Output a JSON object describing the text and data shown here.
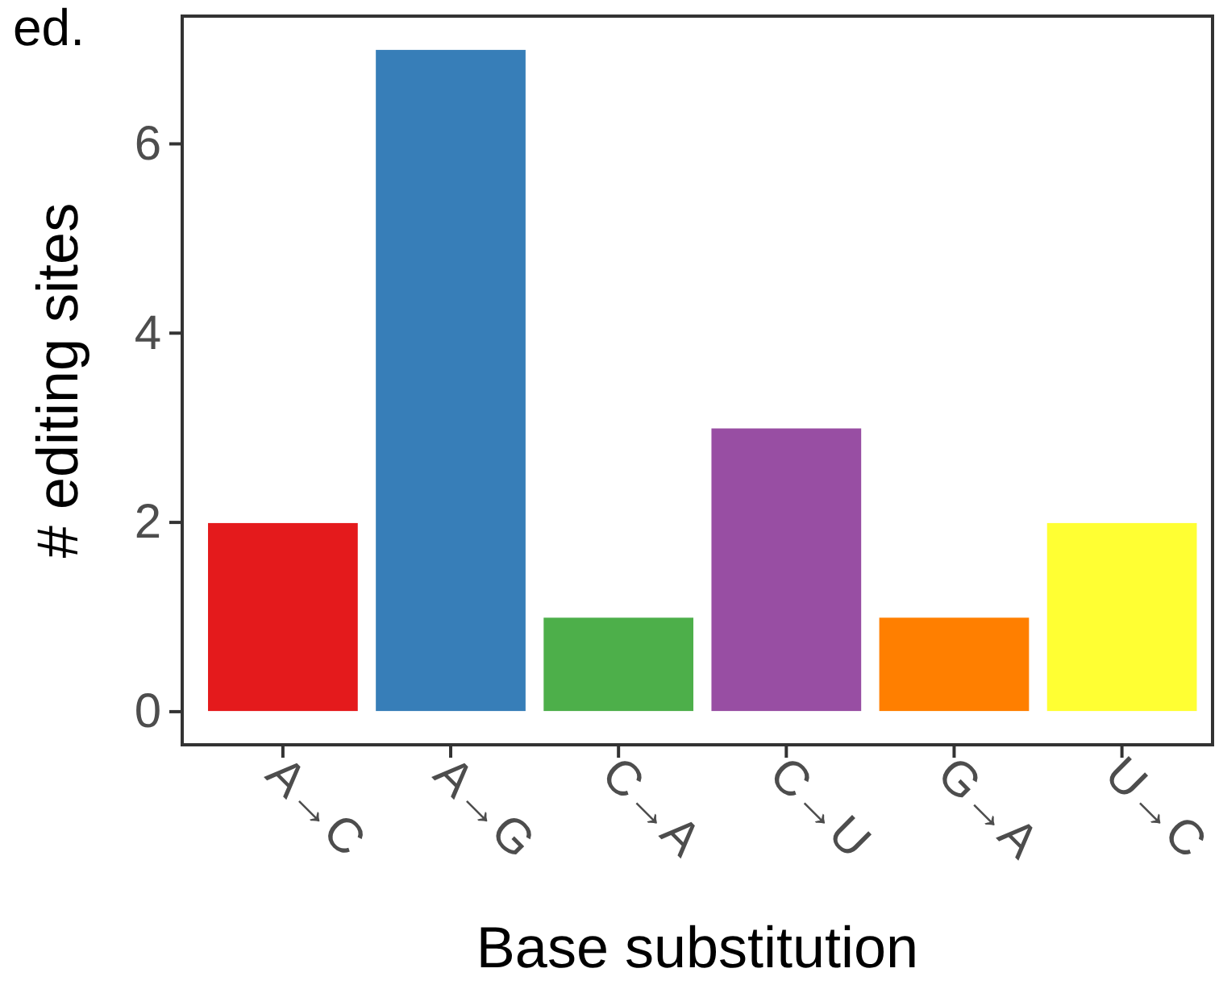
{
  "chart_data": {
    "type": "bar",
    "xlabel": "Base substitution",
    "ylabel": "# editing sites",
    "categories": [
      "A→C",
      "A→G",
      "C→A",
      "C→U",
      "G→A",
      "U→C"
    ],
    "values": [
      2,
      7,
      1,
      3,
      1,
      2
    ],
    "colors": [
      "#e41a1c",
      "#377eb8",
      "#4daf4a",
      "#984ea3",
      "#ff7f00",
      "#ffff33"
    ],
    "ylim": [
      -0.35,
      7.35
    ],
    "yticks": [
      0,
      2,
      4,
      6
    ],
    "grid": false,
    "annotations": [
      "ed."
    ]
  }
}
